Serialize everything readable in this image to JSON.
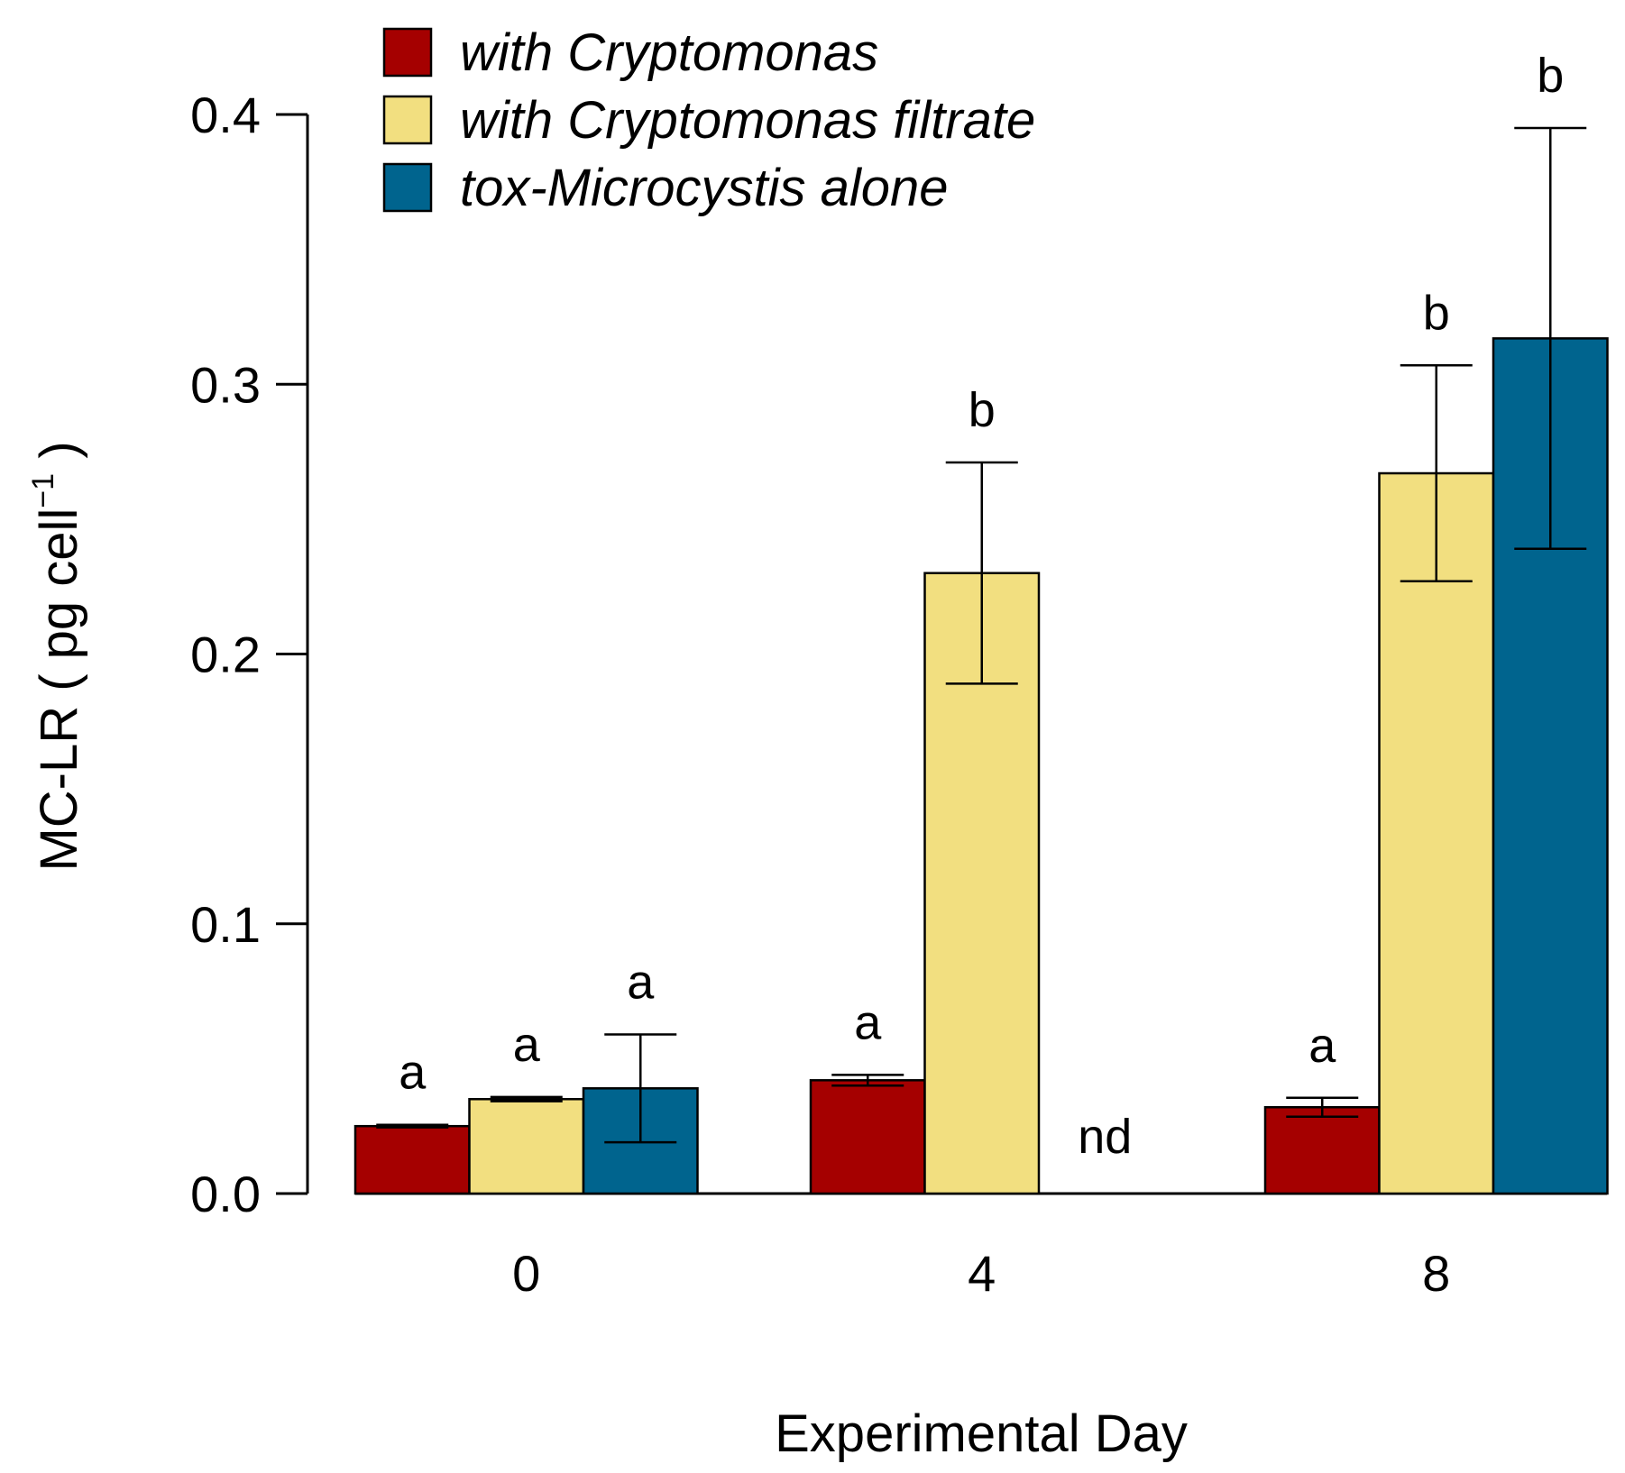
{
  "chart_data": {
    "type": "bar",
    "title": "",
    "xlabel": "Experimental Day",
    "ylabel": "MC-LR ( pg cell",
    "ylabel_superscript": "−1",
    "ylabel_close": " )",
    "ylim": [
      0,
      0.4
    ],
    "yticks": [
      "0.0",
      "0.1",
      "0.2",
      "0.3",
      "0.4"
    ],
    "ytick_values": [
      0,
      0.1,
      0.2,
      0.3,
      0.4
    ],
    "categories": [
      "0",
      "4",
      "8"
    ],
    "legend_position": "top-left",
    "series": [
      {
        "name": "with Cryptomonas",
        "color": "#a50000",
        "values": [
          0.025,
          0.042,
          0.032
        ],
        "errors": [
          0.0005,
          0.002,
          0.0035
        ],
        "letters": [
          "a",
          "a",
          "a"
        ]
      },
      {
        "name": "with Cryptomonas filtrate",
        "color": "#f2df80",
        "values": [
          0.035,
          0.23,
          0.267
        ],
        "errors": [
          0.0008,
          0.041,
          0.04
        ],
        "letters": [
          "a",
          "b",
          "b"
        ]
      },
      {
        "name": "tox-Microcystis alone",
        "color": "#00648e",
        "values": [
          0.039,
          null,
          0.317
        ],
        "errors": [
          0.02,
          null,
          0.078
        ],
        "letters": [
          "a",
          "nd",
          "b"
        ]
      }
    ]
  }
}
